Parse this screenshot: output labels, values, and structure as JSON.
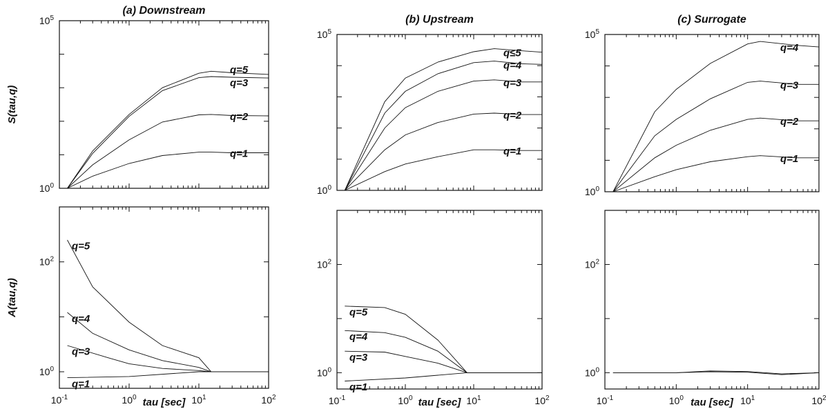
{
  "chart_data": [
    {
      "type": "line",
      "panel": "a-top",
      "title": "(a) Downstream",
      "ylabel": "S(tau,q)",
      "xlabel": "",
      "xscale": "log",
      "yscale": "log",
      "xlim": [
        0.1,
        100
      ],
      "ylim": [
        1,
        100000
      ],
      "y_ticks": [
        {
          "base": "10",
          "exp": "0"
        },
        {
          "base": "10",
          "exp": "5"
        }
      ],
      "x_ticks": [],
      "series": [
        {
          "name": "q=1",
          "x": [
            0.13,
            0.3,
            1,
            3,
            10,
            15,
            30,
            100
          ],
          "y": [
            1,
            2.3,
            5.5,
            9.5,
            12,
            12,
            11.5,
            11.5
          ]
        },
        {
          "name": "q=2",
          "x": [
            0.13,
            0.3,
            1,
            3,
            10,
            15,
            30,
            100
          ],
          "y": [
            1,
            5,
            28,
            95,
            155,
            160,
            148,
            145
          ]
        },
        {
          "name": "q=3",
          "x": [
            0.13,
            0.3,
            1,
            3,
            10,
            15,
            30,
            100
          ],
          "y": [
            1,
            11,
            140,
            820,
            2000,
            2150,
            2050,
            1950
          ]
        },
        {
          "name": "q=5",
          "x": [
            0.13,
            0.3,
            1,
            3,
            10,
            15,
            30,
            100
          ],
          "y": [
            1,
            13,
            160,
            1000,
            2700,
            3100,
            2800,
            2500
          ]
        }
      ]
    },
    {
      "type": "line",
      "panel": "b-top",
      "title": "(b) Upstream",
      "ylabel": "",
      "xlabel": "",
      "xscale": "log",
      "yscale": "log",
      "xlim": [
        0.1,
        100
      ],
      "ylim": [
        1,
        100000
      ],
      "y_ticks": [
        {
          "base": "10",
          "exp": "0"
        },
        {
          "base": "10",
          "exp": "5"
        }
      ],
      "x_ticks": [],
      "series": [
        {
          "name": "q=1",
          "x": [
            0.13,
            0.5,
            1,
            3,
            10,
            20,
            50,
            100
          ],
          "y": [
            1,
            4,
            7,
            12,
            20,
            20,
            19,
            19
          ]
        },
        {
          "name": "q=2",
          "x": [
            0.13,
            0.5,
            1,
            3,
            10,
            20,
            50,
            100
          ],
          "y": [
            1,
            20,
            60,
            150,
            280,
            300,
            270,
            270
          ]
        },
        {
          "name": "q=3",
          "x": [
            0.13,
            0.5,
            1,
            3,
            10,
            20,
            50,
            100
          ],
          "y": [
            1,
            100,
            450,
            1500,
            3200,
            3500,
            3000,
            3000
          ]
        },
        {
          "name": "q=4",
          "x": [
            0.13,
            0.5,
            1,
            3,
            10,
            20,
            50,
            100
          ],
          "y": [
            1,
            300,
            1500,
            5500,
            12500,
            14000,
            11500,
            11000
          ]
        },
        {
          "name": "q≤5",
          "x": [
            0.13,
            0.5,
            1,
            3,
            10,
            20,
            50,
            100
          ],
          "y": [
            1,
            700,
            4000,
            13000,
            28000,
            35000,
            30000,
            27000
          ]
        }
      ]
    },
    {
      "type": "line",
      "panel": "c-top",
      "title": "(c) Surrogate",
      "ylabel": "",
      "xlabel": "",
      "xscale": "log",
      "yscale": "log",
      "xlim": [
        0.1,
        100
      ],
      "ylim": [
        1,
        100000
      ],
      "y_ticks": [
        {
          "base": "10",
          "exp": "0"
        },
        {
          "base": "10",
          "exp": "5"
        }
      ],
      "x_ticks": [],
      "series": [
        {
          "name": "q=1",
          "x": [
            0.13,
            0.5,
            1,
            3,
            10,
            15,
            50,
            100
          ],
          "y": [
            1,
            3,
            5,
            9,
            13,
            14,
            12,
            12
          ]
        },
        {
          "name": "q=2",
          "x": [
            0.13,
            0.5,
            1,
            3,
            10,
            15,
            50,
            100
          ],
          "y": [
            1,
            12,
            30,
            90,
            200,
            220,
            180,
            180
          ]
        },
        {
          "name": "q=3",
          "x": [
            0.13,
            0.5,
            1,
            3,
            10,
            15,
            50,
            100
          ],
          "y": [
            1,
            60,
            200,
            900,
            3000,
            3300,
            2600,
            2600
          ]
        },
        {
          "name": "q=4",
          "x": [
            0.13,
            0.5,
            1,
            3,
            10,
            15,
            50,
            100
          ],
          "y": [
            1,
            350,
            1800,
            12000,
            50000,
            60000,
            45000,
            40000
          ]
        }
      ]
    },
    {
      "type": "line",
      "panel": "a-bottom",
      "title": "",
      "ylabel": "A(tau,q)",
      "xlabel": "tau [sec]",
      "xscale": "log",
      "yscale": "log",
      "xlim": [
        0.1,
        100
      ],
      "ylim": [
        0.5,
        1000
      ],
      "y_ticks": [
        {
          "base": "10",
          "exp": "0"
        },
        {
          "base": "10",
          "exp": "2"
        }
      ],
      "x_ticks": [
        {
          "base": "10",
          "exp": "-1"
        },
        {
          "base": "10",
          "exp": "0"
        },
        {
          "base": "10",
          "exp": "1"
        },
        {
          "base": "10",
          "exp": "2"
        }
      ],
      "series": [
        {
          "name": "q=1",
          "x": [
            0.13,
            1,
            10,
            100
          ],
          "y": [
            0.78,
            0.82,
            1,
            1
          ]
        },
        {
          "name": "q=3",
          "x": [
            0.13,
            0.5,
            1,
            3,
            10,
            15,
            100
          ],
          "y": [
            3,
            1.8,
            1.4,
            1.15,
            1.05,
            1,
            1
          ]
        },
        {
          "name": "q=4",
          "x": [
            0.13,
            0.3,
            1,
            3,
            10,
            15,
            100
          ],
          "y": [
            12,
            5,
            2.5,
            1.6,
            1.2,
            1,
            1
          ]
        },
        {
          "name": "q=5",
          "x": [
            0.13,
            0.3,
            1,
            3,
            10,
            15,
            100
          ],
          "y": [
            250,
            35,
            8,
            3,
            1.8,
            1,
            1
          ]
        }
      ]
    },
    {
      "type": "line",
      "panel": "b-bottom",
      "title": "",
      "ylabel": "",
      "xlabel": "tau [sec]",
      "xscale": "log",
      "yscale": "log",
      "xlim": [
        0.1,
        100
      ],
      "ylim": [
        0.5,
        1000
      ],
      "y_ticks": [
        {
          "base": "10",
          "exp": "0"
        },
        {
          "base": "10",
          "exp": "2"
        }
      ],
      "x_ticks": [
        {
          "base": "10",
          "exp": "-1"
        },
        {
          "base": "10",
          "exp": "0"
        },
        {
          "base": "10",
          "exp": "1"
        },
        {
          "base": "10",
          "exp": "2"
        }
      ],
      "series": [
        {
          "name": "q=1",
          "x": [
            0.13,
            1,
            3,
            8,
            100
          ],
          "y": [
            0.7,
            0.8,
            0.9,
            1,
            1
          ]
        },
        {
          "name": "q=3",
          "x": [
            0.13,
            0.5,
            1,
            3,
            8,
            100
          ],
          "y": [
            2.5,
            2.4,
            2,
            1.5,
            1,
            1
          ]
        },
        {
          "name": "q=4",
          "x": [
            0.13,
            0.5,
            1,
            3,
            8,
            100
          ],
          "y": [
            6,
            5.5,
            4.5,
            2.5,
            1,
            1
          ]
        },
        {
          "name": "q=5",
          "x": [
            0.13,
            0.5,
            1,
            3,
            8,
            100
          ],
          "y": [
            17,
            16,
            12,
            4,
            1,
            1
          ]
        }
      ]
    },
    {
      "type": "line",
      "panel": "c-bottom",
      "title": "",
      "ylabel": "",
      "xlabel": "tau [sec]",
      "xscale": "log",
      "yscale": "log",
      "xlim": [
        0.1,
        100
      ],
      "ylim": [
        0.5,
        1000
      ],
      "y_ticks": [
        {
          "base": "10",
          "exp": "0"
        },
        {
          "base": "10",
          "exp": "2"
        }
      ],
      "x_ticks": [
        {
          "base": "10",
          "exp": "-1"
        },
        {
          "base": "10",
          "exp": "0"
        },
        {
          "base": "10",
          "exp": "1"
        },
        {
          "base": "10",
          "exp": "2"
        }
      ],
      "series": [
        {
          "x": [
            0.13,
            1,
            3,
            10,
            30,
            100
          ],
          "y": [
            1,
            1,
            1.08,
            1.05,
            0.95,
            1
          ]
        },
        {
          "x": [
            0.13,
            1,
            3,
            10,
            30,
            100
          ],
          "y": [
            1,
            1,
            1.04,
            1.02,
            0.92,
            1
          ]
        }
      ]
    }
  ]
}
